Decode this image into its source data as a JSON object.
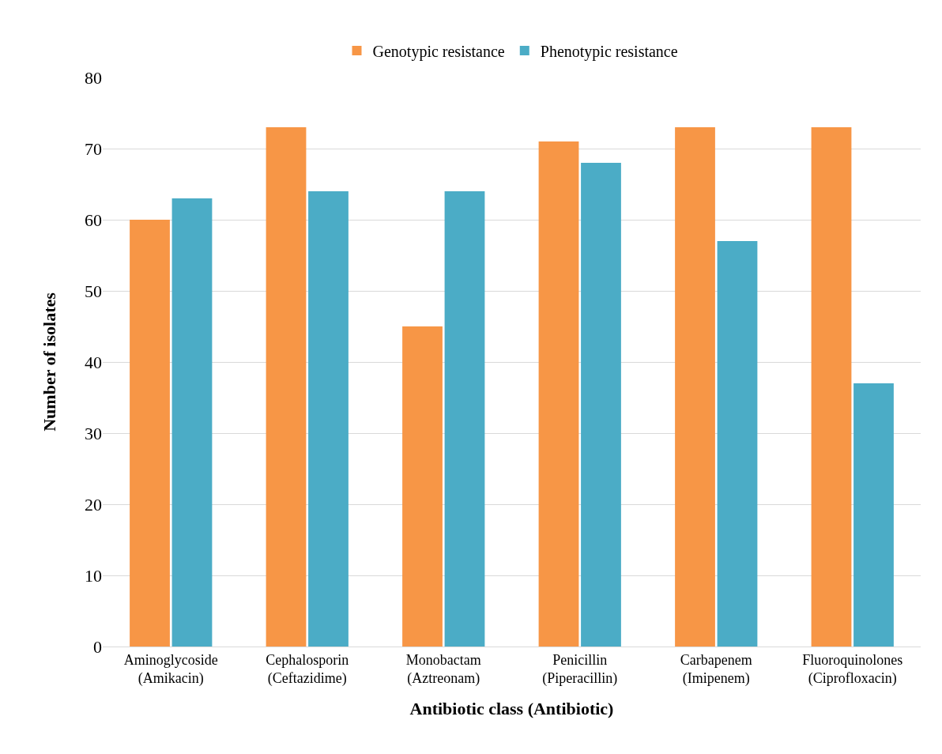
{
  "chart_data": {
    "type": "bar",
    "xlabel": "Antibiotic class (Antibiotic)",
    "ylabel": "Number of isolates",
    "categories": [
      "Aminoglycoside\n(Amikacin)",
      "Cephalosporin\n(Ceftazidime)",
      "Monobactam\n(Aztreonam)",
      "Penicillin\n(Piperacillin)",
      "Carbapenem\n(Imipenem)",
      "Fluoroquinolones\n(Ciprofloxacin)"
    ],
    "series": [
      {
        "name": "Genotypic resistance",
        "color": "#f79646",
        "values": [
          60,
          73,
          45,
          71,
          73,
          73
        ]
      },
      {
        "name": "Phenotypic resistance",
        "color": "#4bacc6",
        "values": [
          63,
          64,
          64,
          68,
          57,
          37
        ]
      }
    ],
    "ylim": [
      0,
      80
    ],
    "yticks": [
      0,
      10,
      20,
      30,
      40,
      50,
      60,
      70,
      80
    ],
    "grid": "y",
    "legend": "top"
  }
}
